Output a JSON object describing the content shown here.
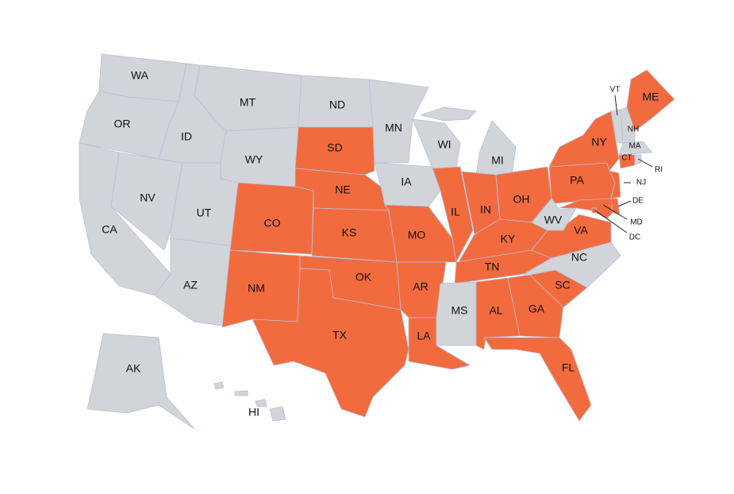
{
  "map": {
    "colors": {
      "highlighted": "#f26b3f",
      "default": "#d1d5d9"
    },
    "states": [
      {
        "label": "WA",
        "highlighted": false
      },
      {
        "label": "OR",
        "highlighted": false
      },
      {
        "label": "CA",
        "highlighted": false
      },
      {
        "label": "NV",
        "highlighted": false
      },
      {
        "label": "ID",
        "highlighted": false
      },
      {
        "label": "MT",
        "highlighted": false
      },
      {
        "label": "WY",
        "highlighted": false
      },
      {
        "label": "UT",
        "highlighted": false
      },
      {
        "label": "AZ",
        "highlighted": false
      },
      {
        "label": "CO",
        "highlighted": true
      },
      {
        "label": "NM",
        "highlighted": true
      },
      {
        "label": "ND",
        "highlighted": false
      },
      {
        "label": "SD",
        "highlighted": true
      },
      {
        "label": "NE",
        "highlighted": true
      },
      {
        "label": "KS",
        "highlighted": true
      },
      {
        "label": "OK",
        "highlighted": true
      },
      {
        "label": "TX",
        "highlighted": true
      },
      {
        "label": "MN",
        "highlighted": false
      },
      {
        "label": "IA",
        "highlighted": false
      },
      {
        "label": "MO",
        "highlighted": true
      },
      {
        "label": "AR",
        "highlighted": true
      },
      {
        "label": "LA",
        "highlighted": true
      },
      {
        "label": "WI",
        "highlighted": false
      },
      {
        "label": "IL",
        "highlighted": true
      },
      {
        "label": "MI",
        "highlighted": false
      },
      {
        "label": "IN",
        "highlighted": true
      },
      {
        "label": "OH",
        "highlighted": true
      },
      {
        "label": "KY",
        "highlighted": true
      },
      {
        "label": "TN",
        "highlighted": true
      },
      {
        "label": "MS",
        "highlighted": false
      },
      {
        "label": "AL",
        "highlighted": true
      },
      {
        "label": "GA",
        "highlighted": true
      },
      {
        "label": "FL",
        "highlighted": true
      },
      {
        "label": "SC",
        "highlighted": true
      },
      {
        "label": "NC",
        "highlighted": false
      },
      {
        "label": "VA",
        "highlighted": true
      },
      {
        "label": "WV",
        "highlighted": false
      },
      {
        "label": "PA",
        "highlighted": true
      },
      {
        "label": "NY",
        "highlighted": true
      },
      {
        "label": "VT",
        "highlighted": false
      },
      {
        "label": "NH",
        "highlighted": false
      },
      {
        "label": "ME",
        "highlighted": true
      },
      {
        "label": "MA",
        "highlighted": false
      },
      {
        "label": "CT",
        "highlighted": true
      },
      {
        "label": "RI",
        "highlighted": false
      },
      {
        "label": "NJ",
        "highlighted": true
      },
      {
        "label": "DE",
        "highlighted": true
      },
      {
        "label": "MD",
        "highlighted": true
      },
      {
        "label": "DC",
        "highlighted": true
      },
      {
        "label": "AK",
        "highlighted": false
      },
      {
        "label": "HI",
        "highlighted": false
      }
    ]
  }
}
